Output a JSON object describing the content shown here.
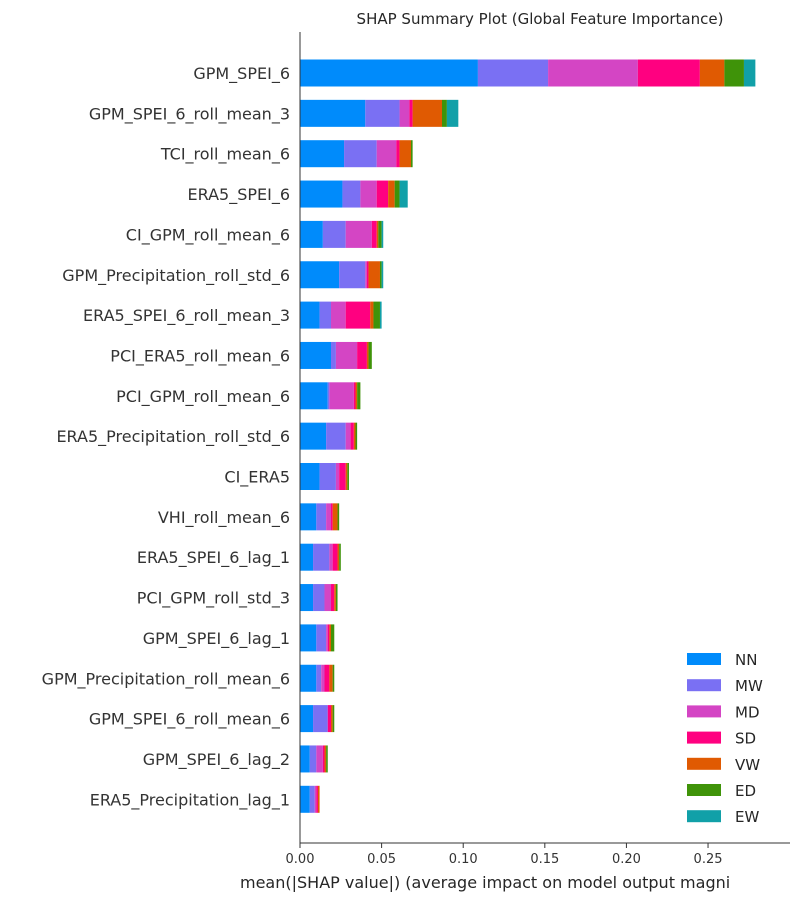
{
  "chart_data": {
    "type": "bar",
    "orientation": "horizontal",
    "stacked": true,
    "title": "SHAP Summary Plot (Global Feature Importance)",
    "xlabel": "mean(|SHAP value|) (average impact on model output magni",
    "ylabel": "",
    "xlim": [
      0.0,
      0.28
    ],
    "x_ticks": [
      "0.00",
      "0.05",
      "0.10",
      "0.15",
      "0.20",
      "0.25"
    ],
    "grid": false,
    "legend_position": "lower-right",
    "categories": [
      "GPM_SPEI_6",
      "GPM_SPEI_6_roll_mean_3",
      "TCI_roll_mean_6",
      "ERA5_SPEI_6",
      "CI_GPM_roll_mean_6",
      "GPM_Precipitation_roll_std_6",
      "ERA5_SPEI_6_roll_mean_3",
      "PCI_ERA5_roll_mean_6",
      "PCI_GPM_roll_mean_6",
      "ERA5_Precipitation_roll_std_6",
      "CI_ERA5",
      "VHI_roll_mean_6",
      "ERA5_SPEI_6_lag_1",
      "PCI_GPM_roll_std_3",
      "GPM_SPEI_6_lag_1",
      "GPM_Precipitation_roll_mean_6",
      "GPM_SPEI_6_roll_mean_6",
      "GPM_SPEI_6_lag_2",
      "ERA5_Precipitation_lag_1"
    ],
    "series": [
      {
        "name": "NN",
        "color": "#008bfb",
        "values": [
          0.109,
          0.04,
          0.027,
          0.026,
          0.014,
          0.024,
          0.012,
          0.019,
          0.017,
          0.016,
          0.012,
          0.01,
          0.008,
          0.008,
          0.01,
          0.01,
          0.008,
          0.006,
          0.006
        ]
      },
      {
        "name": "MW",
        "color": "#7a70f3",
        "values": [
          0.043,
          0.021,
          0.02,
          0.011,
          0.014,
          0.016,
          0.007,
          0.003,
          0.001,
          0.012,
          0.01,
          0.006,
          0.01,
          0.007,
          0.006,
          0.003,
          0.009,
          0.004,
          0.003
        ]
      },
      {
        "name": "MD",
        "color": "#d445c4",
        "values": [
          0.055,
          0.006,
          0.012,
          0.01,
          0.016,
          0.001,
          0.009,
          0.013,
          0.015,
          0.003,
          0.002,
          0.003,
          0.002,
          0.004,
          0.001,
          0.002,
          0.0,
          0.004,
          0.001
        ]
      },
      {
        "name": "SD",
        "color": "#ff0080",
        "values": [
          0.038,
          0.002,
          0.002,
          0.007,
          0.003,
          0.001,
          0.015,
          0.006,
          0.001,
          0.002,
          0.004,
          0.001,
          0.003,
          0.002,
          0.001,
          0.003,
          0.002,
          0.001,
          0.001
        ]
      },
      {
        "name": "VW",
        "color": "#e05a02",
        "values": [
          0.015,
          0.018,
          0.007,
          0.004,
          0.001,
          0.007,
          0.002,
          0.001,
          0.001,
          0.001,
          0.001,
          0.003,
          0.001,
          0.001,
          0.001,
          0.002,
          0.001,
          0.001,
          0.001
        ]
      },
      {
        "name": "ED",
        "color": "#3f9309",
        "values": [
          0.012,
          0.003,
          0.001,
          0.003,
          0.002,
          0.001,
          0.004,
          0.002,
          0.002,
          0.001,
          0.001,
          0.001,
          0.001,
          0.001,
          0.002,
          0.001,
          0.001,
          0.001,
          0.0
        ]
      },
      {
        "name": "EW",
        "color": "#11a0a8",
        "values": [
          0.007,
          0.007,
          0.0,
          0.005,
          0.001,
          0.001,
          0.001,
          0.0,
          0.0,
          0.0,
          0.0,
          0.0,
          0.0,
          0.0,
          0.0,
          0.0,
          0.0,
          0.0,
          0.0
        ]
      }
    ]
  }
}
